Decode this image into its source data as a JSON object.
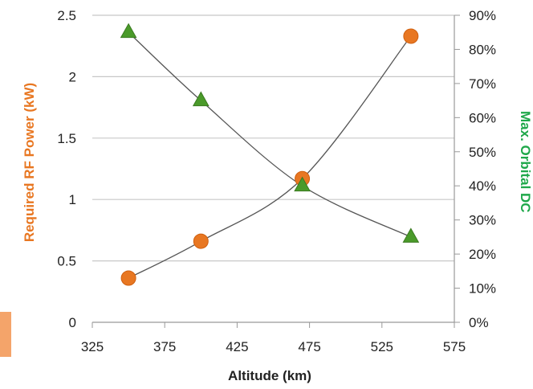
{
  "chart_data": {
    "type": "scatter",
    "title": "",
    "xlabel": "Altitude (km)",
    "ylabel": "Required RF Power (kW)",
    "y2label": "Max. Orbital DC",
    "xlim": [
      325,
      575
    ],
    "ylim": [
      0,
      2.5
    ],
    "y2lim": [
      0,
      0.9
    ],
    "x_ticks": [
      "325",
      "375",
      "425",
      "475",
      "525",
      "575"
    ],
    "y_ticks": [
      "0",
      "0.5",
      "1",
      "1.5",
      "2",
      "2.5"
    ],
    "y2_ticks": [
      "0%",
      "10%",
      "20%",
      "30%",
      "40%",
      "50%",
      "60%",
      "70%",
      "80%",
      "90%"
    ],
    "grid": true,
    "legend": "none",
    "series": [
      {
        "axis": "left",
        "marker": "circle",
        "color": "#e87722",
        "x": [
          350,
          400,
          470,
          545
        ],
        "y": [
          0.36,
          0.66,
          1.17,
          2.33
        ],
        "trendline": true
      },
      {
        "axis": "right",
        "marker": "triangle",
        "color": "#4a9a2a",
        "x": [
          350,
          400,
          470,
          545
        ],
        "y": [
          0.85,
          0.65,
          0.4,
          0.25
        ],
        "trendline": true
      }
    ],
    "colors": {
      "left_axis_title": "#e87722",
      "right_axis_title": "#1fa84a",
      "trendline": "#555555",
      "grid": "#c8c8c8",
      "axis": "#999999"
    }
  }
}
